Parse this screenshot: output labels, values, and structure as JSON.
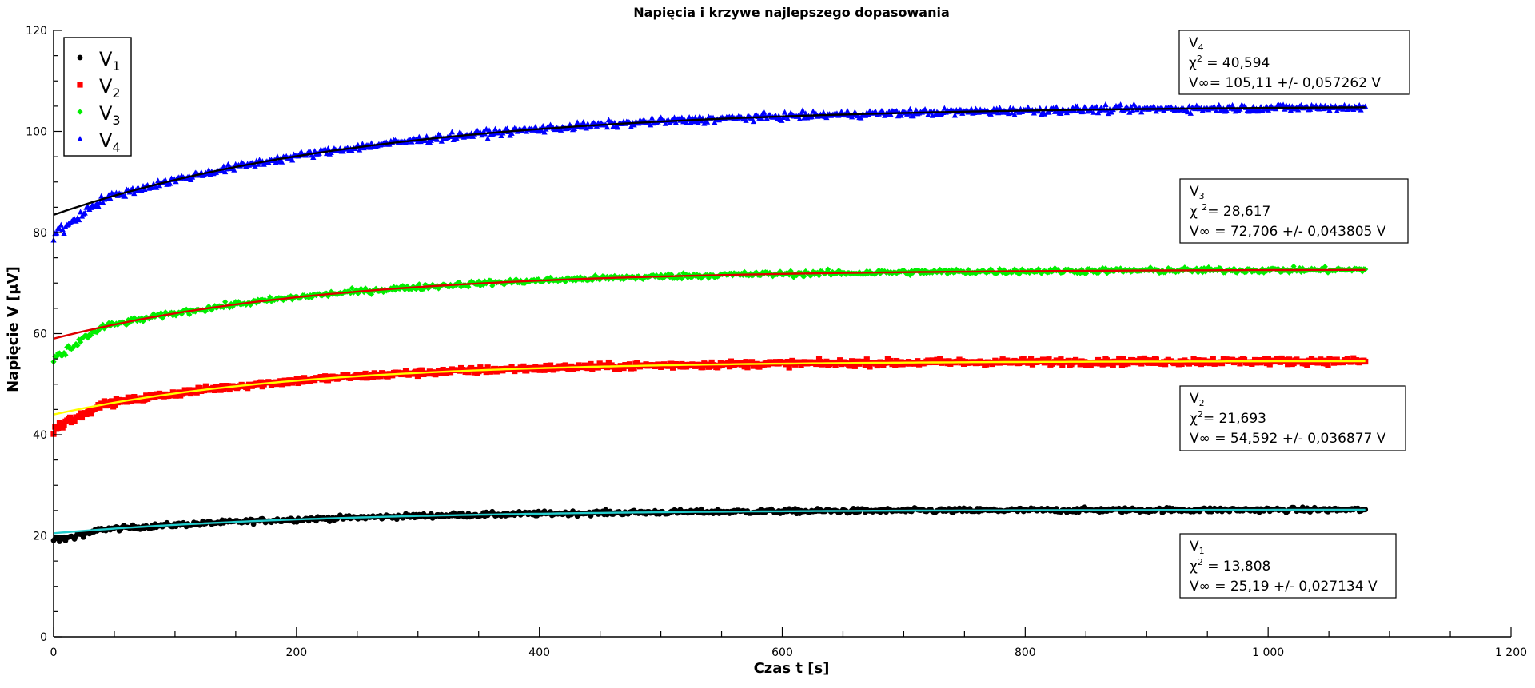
{
  "chart_data": {
    "type": "scatter",
    "title": "Napięcia i krzywe najlepszego dopasowania",
    "xlabel": "Czas t  [s]",
    "ylabel": "Napięcie V [μV]",
    "xlim": [
      0,
      1200
    ],
    "ylim": [
      0,
      120
    ],
    "x_ticks": [
      0,
      200,
      400,
      600,
      800,
      1000,
      1200
    ],
    "x_tick_labels": [
      "0",
      "200",
      "400",
      "600",
      "800",
      "1 000",
      "1 200"
    ],
    "y_ticks": [
      0,
      20,
      40,
      60,
      80,
      100,
      120
    ],
    "y_tick_labels": [
      "0",
      "20",
      "40",
      "60",
      "80",
      "100",
      "120"
    ],
    "grid": false,
    "legend_position": "top-left",
    "series": [
      {
        "name": "V",
        "sub": "1",
        "color": "#000000",
        "marker": "circle",
        "fit_color": "#22cccc",
        "v_inf": 25.19,
        "v0": 20.5,
        "tau": 230,
        "noise": 0.45,
        "start_dev": 1.5,
        "annotation": {
          "name": "V",
          "sub": "1",
          "chi_label": "χ",
          "chi_sup": "2",
          "chi_value": " = 13,808",
          "vinf_line": "V∞ = 25,19 +/- 0,027134 V"
        }
      },
      {
        "name": "V",
        "sub": "2",
        "color": "#ff0000",
        "marker": "square",
        "fit_color": "#ffff00",
        "v_inf": 54.592,
        "v0": 44.0,
        "tau": 200,
        "noise": 0.6,
        "start_dev": 3.0,
        "annotation": {
          "name": "V",
          "sub": "2",
          "chi_label": "χ",
          "chi_sup": "2",
          "chi_value": "= 21,693",
          "vinf_line": "V∞ = 54,592 +/- 0,036877 V"
        }
      },
      {
        "name": "V",
        "sub": "3",
        "color": "#00ee00",
        "marker": "diamond",
        "fit_color": "#dd0000",
        "v_inf": 72.706,
        "v0": 59.0,
        "tau": 220,
        "noise": 0.55,
        "start_dev": 4.0,
        "annotation": {
          "name": "V",
          "sub": "3",
          "chi_label": "χ ",
          "chi_sup": "2",
          "chi_value": "= 28,617",
          "vinf_line": "V∞ = 72,706 +/- 0,043805 V"
        }
      },
      {
        "name": "V",
        "sub": "4",
        "color": "#0000ff",
        "marker": "triangle",
        "fit_color": "#000000",
        "v_inf": 105.11,
        "v0": 83.5,
        "tau": 260,
        "noise": 0.7,
        "start_dev": 4.0,
        "annotation": {
          "name": "V",
          "sub": "4",
          "chi_label": "χ",
          "chi_sup": "2",
          "chi_value": " = 40,594",
          "vinf_line": "V∞= 105,11 +/- 0,057262 V"
        }
      }
    ],
    "x_range": [
      0,
      1080
    ]
  }
}
